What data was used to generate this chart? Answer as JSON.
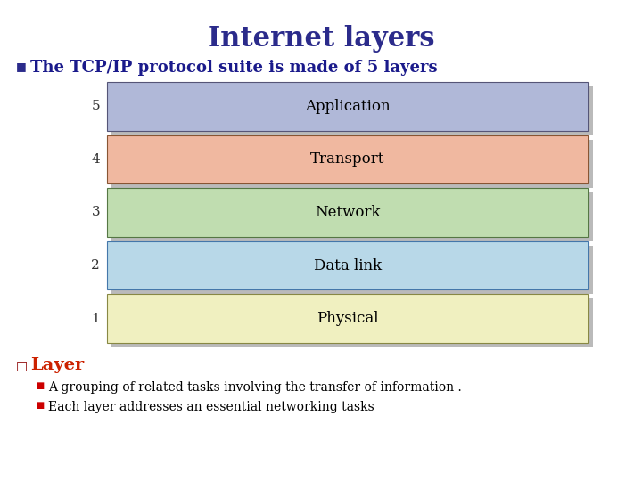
{
  "title": "Internet layers",
  "title_color": "#2b2b8b",
  "title_fontsize": 22,
  "bullet1_text": "The TCP/IP protocol suite is made of 5 layers",
  "bullet1_color": "#1a1a8b",
  "bullet1_fontsize": 13,
  "bullet1_marker_color": "#2b2b8b",
  "layers": [
    {
      "number": 5,
      "label": "Application",
      "color": "#b0b8d8",
      "border": "#555577"
    },
    {
      "number": 4,
      "label": "Transport",
      "color": "#f0b8a0",
      "border": "#885533"
    },
    {
      "number": 3,
      "label": "Network",
      "color": "#c0ddb0",
      "border": "#557744"
    },
    {
      "number": 2,
      "label": "Data link",
      "color": "#b8d8e8",
      "border": "#4477aa"
    },
    {
      "number": 1,
      "label": "Physical",
      "color": "#f0f0c0",
      "border": "#888844"
    }
  ],
  "layer_text_color": "#000000",
  "layer_fontsize": 12,
  "layer_number_color": "#333333",
  "layer_number_fontsize": 11,
  "shadow_color": "#666666",
  "sub_title": "Layer",
  "sub_title_color": "#cc2200",
  "sub_title_fontsize": 14,
  "sub_marker_color": "#8b0000",
  "bullets": [
    "A grouping of related tasks involving the transfer of information .",
    "Each layer addresses an essential networking tasks"
  ],
  "bullet_color": "#000000",
  "bullet_fontsize": 10,
  "bullet_marker_color": "#cc0000",
  "bg_color": "#ffffff"
}
